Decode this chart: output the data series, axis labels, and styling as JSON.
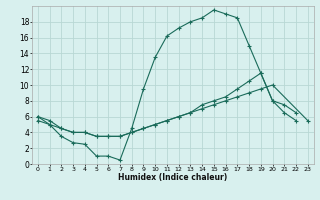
{
  "xlabel": "Humidex (Indice chaleur)",
  "bg_color": "#d8f0ee",
  "grid_color": "#b8d8d4",
  "line_color": "#1a6b5a",
  "xlim": [
    -0.5,
    23.5
  ],
  "ylim": [
    0,
    20
  ],
  "xticks": [
    0,
    1,
    2,
    3,
    4,
    5,
    6,
    7,
    8,
    9,
    10,
    11,
    12,
    13,
    14,
    15,
    16,
    17,
    18,
    19,
    20,
    21,
    22,
    23
  ],
  "yticks": [
    0,
    2,
    4,
    6,
    8,
    10,
    12,
    14,
    16,
    18
  ],
  "curve1_x": [
    0,
    1,
    2,
    3,
    4,
    5,
    6,
    7,
    8,
    9,
    10,
    11,
    12,
    13,
    14,
    15,
    16,
    17,
    18,
    19,
    20,
    21,
    22
  ],
  "curve1_y": [
    6,
    5,
    3.5,
    2.7,
    2.5,
    1.0,
    1.0,
    0.5,
    4.5,
    9.5,
    13.5,
    16.2,
    17.2,
    18.0,
    18.5,
    19.5,
    19.0,
    18.5,
    15.0,
    11.5,
    8.0,
    6.5,
    5.5
  ],
  "curve2_x": [
    0,
    1,
    2,
    3,
    4,
    5,
    6,
    7,
    8,
    9,
    10,
    11,
    12,
    13,
    14,
    15,
    16,
    17,
    18,
    19,
    20,
    23
  ],
  "curve2_y": [
    5.5,
    5.0,
    4.5,
    4.0,
    4.0,
    3.5,
    3.5,
    3.5,
    4.0,
    4.5,
    5.0,
    5.5,
    6.0,
    6.5,
    7.0,
    7.5,
    8.0,
    8.5,
    9.0,
    9.5,
    10.0,
    5.5
  ],
  "curve3_x": [
    0,
    1,
    2,
    3,
    4,
    5,
    6,
    7,
    8,
    9,
    10,
    11,
    12,
    13,
    14,
    15,
    16,
    17,
    18,
    19,
    20,
    21,
    22,
    23
  ],
  "curve3_y": [
    6.0,
    5.5,
    4.5,
    4.0,
    4.0,
    3.5,
    3.5,
    3.5,
    4.0,
    4.5,
    5.0,
    5.5,
    6.0,
    6.5,
    7.5,
    8.0,
    8.5,
    9.5,
    10.5,
    11.5,
    8.0,
    7.5,
    6.5,
    null
  ]
}
